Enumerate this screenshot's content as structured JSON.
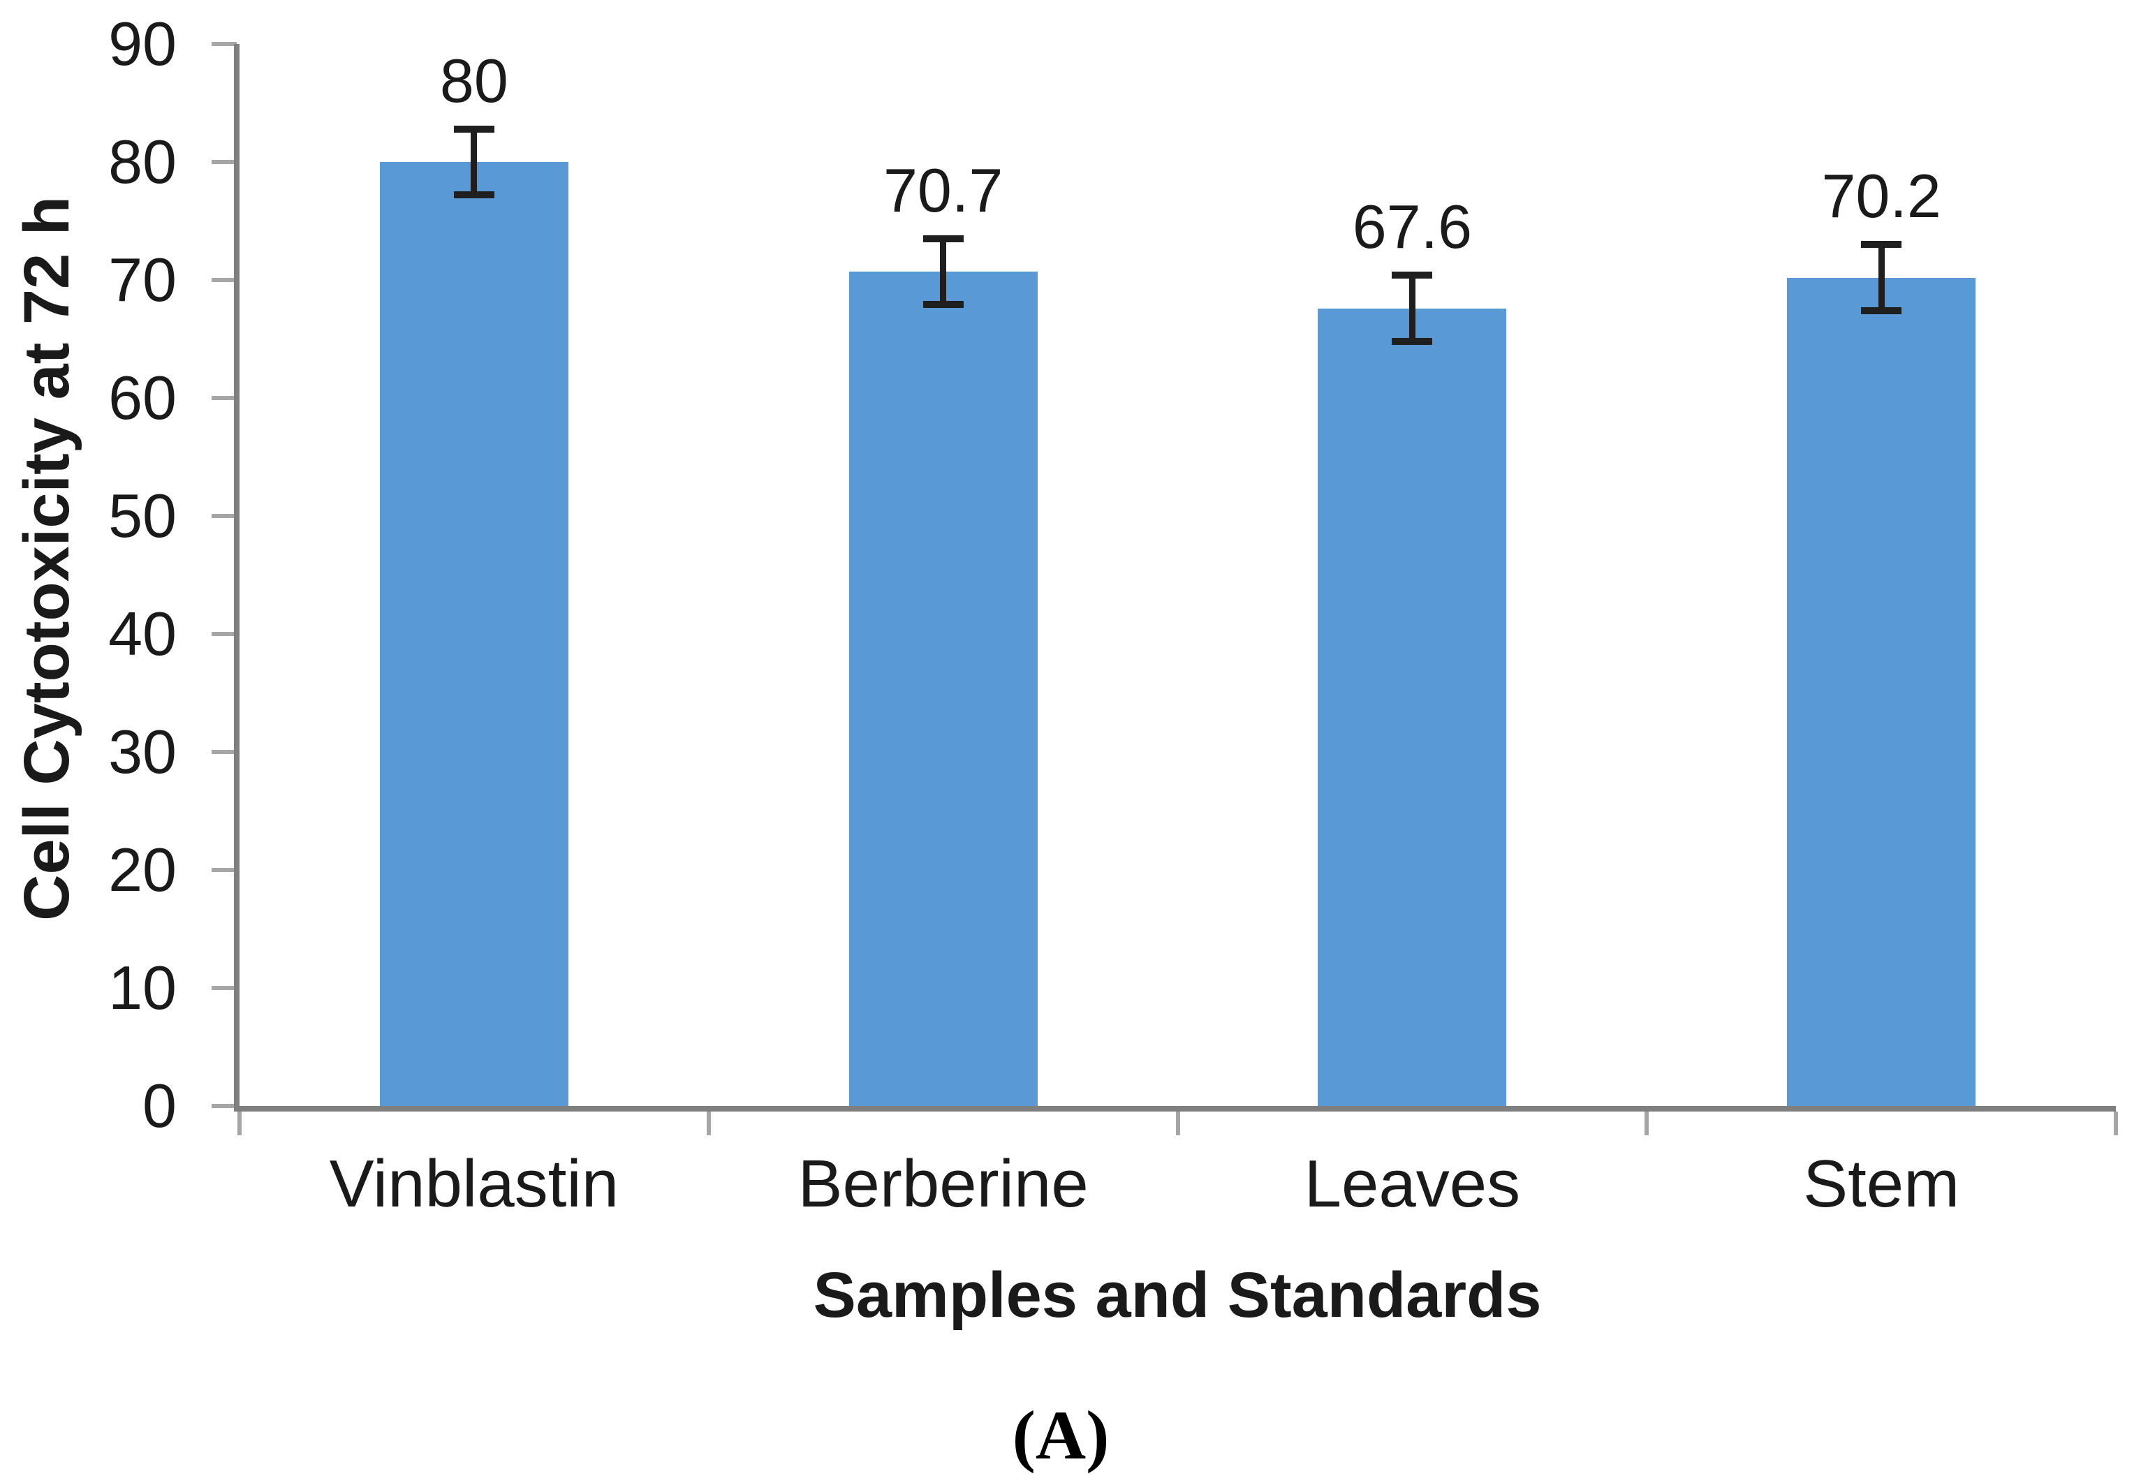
{
  "figure": {
    "panel_label": "(A)"
  },
  "chart_data": {
    "type": "bar",
    "title": "",
    "categories": [
      "Vinblastin",
      "Berberine",
      "Leaves",
      "Stem"
    ],
    "values": [
      80,
      70.7,
      67.6,
      70.2
    ],
    "data_labels": [
      "80",
      "70.7",
      "67.6",
      "70.2"
    ],
    "error_bars": [
      2.8,
      2.8,
      2.8,
      2.8
    ],
    "xlabel": "Samples and Standards",
    "ylabel": "Cell Cytotoxicity at 72 h",
    "ylim": [
      0,
      90
    ],
    "yticks": [
      0,
      10,
      20,
      30,
      40,
      50,
      60,
      70,
      80,
      90
    ],
    "grid": false,
    "legend_position": "none",
    "colors": {
      "bar": "#5999D6",
      "axis": "#7F7F7F",
      "tick": "#A6A6A6",
      "error_bar": "#1F1F1F",
      "text": "#1A1A1A"
    }
  }
}
